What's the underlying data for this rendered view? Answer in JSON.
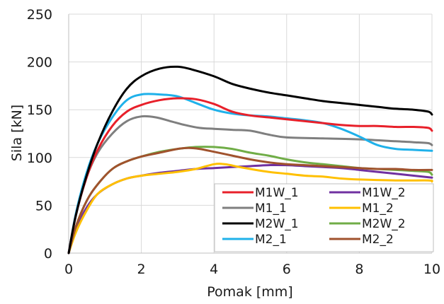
{
  "chart_data": {
    "type": "line",
    "title": "",
    "xlabel": "Pomak [mm]",
    "ylabel": "Sila [kN]",
    "xlim": [
      0,
      10
    ],
    "ylim": [
      0,
      250
    ],
    "xticks": [
      0,
      2,
      4,
      6,
      8,
      10
    ],
    "yticks": [
      0,
      50,
      100,
      150,
      200,
      250
    ],
    "x_tick_labels": [
      "0",
      "2",
      "4",
      "6",
      "8",
      "10"
    ],
    "y_tick_labels": [
      "0",
      "50",
      "100",
      "150",
      "200",
      "250"
    ],
    "grid": true,
    "legend_placement": "bottom-right",
    "series": [
      {
        "name": "M1W_1",
        "color": "#e8202a",
        "points": [
          [
            0,
            0
          ],
          [
            0.2,
            40
          ],
          [
            0.5,
            80
          ],
          [
            0.8,
            108
          ],
          [
            1.2,
            133
          ],
          [
            1.6,
            148
          ],
          [
            2,
            155
          ],
          [
            2.5,
            160
          ],
          [
            3,
            162
          ],
          [
            3.5,
            161
          ],
          [
            4,
            156
          ],
          [
            4.5,
            148
          ],
          [
            5,
            144
          ],
          [
            5.5,
            142
          ],
          [
            6,
            140
          ],
          [
            6.5,
            138
          ],
          [
            7,
            136
          ],
          [
            7.5,
            134
          ],
          [
            8,
            133
          ],
          [
            8.5,
            133
          ],
          [
            9,
            132
          ],
          [
            9.5,
            132
          ],
          [
            9.9,
            131
          ],
          [
            10,
            128
          ]
        ]
      },
      {
        "name": "M1W_2",
        "color": "#7030a0",
        "points": [
          [
            0,
            0
          ],
          [
            0.2,
            25
          ],
          [
            0.5,
            48
          ],
          [
            0.8,
            62
          ],
          [
            1.2,
            72
          ],
          [
            1.6,
            78
          ],
          [
            2,
            81
          ],
          [
            2.5,
            84
          ],
          [
            3,
            86
          ],
          [
            3.5,
            88
          ],
          [
            4,
            89
          ],
          [
            4.5,
            90
          ],
          [
            5,
            91
          ],
          [
            5.5,
            92
          ],
          [
            6,
            92
          ],
          [
            6.5,
            91
          ],
          [
            7,
            90
          ],
          [
            7.5,
            89
          ],
          [
            8,
            87
          ],
          [
            8.5,
            85
          ],
          [
            9,
            83
          ],
          [
            9.5,
            81
          ],
          [
            10,
            79
          ]
        ]
      },
      {
        "name": "M1_1",
        "color": "#7f7f7f",
        "points": [
          [
            0,
            0
          ],
          [
            0.2,
            40
          ],
          [
            0.5,
            80
          ],
          [
            0.8,
            105
          ],
          [
            1.2,
            125
          ],
          [
            1.6,
            138
          ],
          [
            2,
            143
          ],
          [
            2.4,
            142
          ],
          [
            2.8,
            138
          ],
          [
            3.2,
            134
          ],
          [
            3.6,
            131
          ],
          [
            4,
            130
          ],
          [
            4.5,
            129
          ],
          [
            5,
            128
          ],
          [
            5.5,
            124
          ],
          [
            6,
            121
          ],
          [
            7,
            120
          ],
          [
            8,
            119
          ],
          [
            9,
            117
          ],
          [
            9.5,
            116
          ],
          [
            9.9,
            115
          ],
          [
            10,
            113
          ]
        ]
      },
      {
        "name": "M1_2",
        "color": "#ffc000",
        "points": [
          [
            0,
            0
          ],
          [
            0.2,
            22
          ],
          [
            0.5,
            45
          ],
          [
            0.8,
            62
          ],
          [
            1.2,
            72
          ],
          [
            1.6,
            78
          ],
          [
            2,
            81
          ],
          [
            2.5,
            83
          ],
          [
            3,
            85
          ],
          [
            3.5,
            88
          ],
          [
            4,
            93
          ],
          [
            4.3,
            93
          ],
          [
            4.7,
            90
          ],
          [
            5,
            88
          ],
          [
            5.5,
            85
          ],
          [
            6,
            83
          ],
          [
            6.5,
            81
          ],
          [
            7,
            80
          ],
          [
            7.5,
            78
          ],
          [
            8,
            77
          ],
          [
            9,
            76
          ],
          [
            9.9,
            76
          ],
          [
            10,
            75
          ]
        ]
      },
      {
        "name": "M2W_1",
        "color": "#000000",
        "points": [
          [
            0,
            0
          ],
          [
            0.2,
            40
          ],
          [
            0.5,
            82
          ],
          [
            0.8,
            115
          ],
          [
            1.2,
            148
          ],
          [
            1.6,
            172
          ],
          [
            2,
            185
          ],
          [
            2.5,
            193
          ],
          [
            3,
            195
          ],
          [
            3.4,
            192
          ],
          [
            4,
            185
          ],
          [
            4.5,
            177
          ],
          [
            5,
            172
          ],
          [
            5.5,
            168
          ],
          [
            6,
            165
          ],
          [
            6.5,
            162
          ],
          [
            7,
            159
          ],
          [
            7.5,
            157
          ],
          [
            8,
            155
          ],
          [
            8.5,
            153
          ],
          [
            9,
            151
          ],
          [
            9.5,
            150
          ],
          [
            9.9,
            148
          ],
          [
            10,
            145
          ]
        ]
      },
      {
        "name": "M2W_2",
        "color": "#70ad47",
        "points": [
          [
            0,
            0
          ],
          [
            0.2,
            28
          ],
          [
            0.5,
            55
          ],
          [
            0.8,
            72
          ],
          [
            1.2,
            88
          ],
          [
            1.6,
            96
          ],
          [
            2,
            101
          ],
          [
            2.5,
            106
          ],
          [
            3,
            109
          ],
          [
            3.5,
            111
          ],
          [
            4,
            111
          ],
          [
            4.5,
            109
          ],
          [
            5,
            105
          ],
          [
            5.5,
            102
          ],
          [
            6,
            98
          ],
          [
            6.5,
            95
          ],
          [
            7,
            93
          ],
          [
            7.5,
            91
          ],
          [
            8,
            89
          ],
          [
            8.5,
            88
          ],
          [
            9,
            87
          ],
          [
            9.5,
            86
          ],
          [
            9.9,
            85
          ],
          [
            10,
            82
          ]
        ]
      },
      {
        "name": "M2_1",
        "color": "#1fb1ea",
        "points": [
          [
            0,
            0
          ],
          [
            0.2,
            42
          ],
          [
            0.5,
            85
          ],
          [
            0.8,
            115
          ],
          [
            1.2,
            142
          ],
          [
            1.6,
            160
          ],
          [
            2,
            166
          ],
          [
            2.5,
            166
          ],
          [
            3,
            164
          ],
          [
            3.5,
            157
          ],
          [
            4,
            150
          ],
          [
            4.5,
            146
          ],
          [
            5,
            144
          ],
          [
            5.5,
            143
          ],
          [
            6,
            141
          ],
          [
            6.5,
            139
          ],
          [
            7,
            136
          ],
          [
            7.5,
            130
          ],
          [
            8,
            122
          ],
          [
            8.5,
            113
          ],
          [
            9,
            109
          ],
          [
            9.5,
            108
          ],
          [
            10,
            107
          ]
        ]
      },
      {
        "name": "M2_2",
        "color": "#a0522d",
        "points": [
          [
            0,
            0
          ],
          [
            0.2,
            28
          ],
          [
            0.5,
            55
          ],
          [
            0.8,
            72
          ],
          [
            1.2,
            88
          ],
          [
            1.6,
            96
          ],
          [
            2,
            101
          ],
          [
            2.5,
            105
          ],
          [
            3,
            109
          ],
          [
            3.3,
            110
          ],
          [
            3.6,
            109
          ],
          [
            4,
            106
          ],
          [
            4.5,
            102
          ],
          [
            5,
            98
          ],
          [
            5.5,
            95
          ],
          [
            6,
            93
          ],
          [
            6.5,
            92
          ],
          [
            7,
            91
          ],
          [
            7.5,
            90
          ],
          [
            8,
            89
          ],
          [
            8.5,
            88
          ],
          [
            9,
            88
          ],
          [
            9.5,
            87
          ],
          [
            10,
            87
          ]
        ]
      }
    ]
  }
}
